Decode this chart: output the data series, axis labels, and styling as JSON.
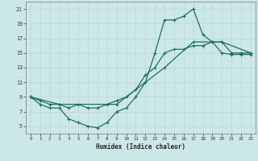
{
  "xlabel": "Humidex (Indice chaleur)",
  "bg_color": "#cce8e6",
  "line_color": "#1a6e6a",
  "grid_color": "#b8d8d5",
  "xlim": [
    -0.5,
    23.5
  ],
  "ylim": [
    4,
    22
  ],
  "xticks": [
    0,
    1,
    2,
    3,
    4,
    5,
    6,
    7,
    8,
    9,
    10,
    11,
    12,
    13,
    14,
    15,
    16,
    17,
    18,
    19,
    20,
    21,
    22,
    23
  ],
  "yticks": [
    5,
    7,
    9,
    11,
    13,
    15,
    17,
    19,
    21
  ],
  "line1_x": [
    0,
    1,
    2,
    3,
    4,
    5,
    6,
    7,
    8,
    9,
    10,
    11,
    12,
    13,
    14,
    15,
    16,
    17,
    18,
    19,
    20,
    21,
    22,
    23
  ],
  "line1_y": [
    9,
    8,
    7.5,
    7.5,
    6,
    5.5,
    5,
    4.8,
    5.5,
    7,
    7.5,
    9,
    11,
    15,
    19.5,
    19.5,
    20,
    21,
    17.5,
    16.5,
    15,
    14.8,
    14.8,
    14.8
  ],
  "line2_x": [
    0,
    1,
    2,
    3,
    4,
    5,
    6,
    7,
    8,
    9,
    10,
    11,
    12,
    13,
    14,
    15,
    16,
    17,
    18,
    19,
    20,
    21,
    22,
    23
  ],
  "line2_y": [
    9,
    8.5,
    8,
    8,
    7.5,
    8,
    7.5,
    7.5,
    8,
    8.5,
    9,
    10,
    12,
    13,
    15,
    15.5,
    15.5,
    16,
    16,
    16.5,
    16.5,
    15,
    15,
    15
  ],
  "line3_x": [
    0,
    3,
    9,
    14,
    17,
    20,
    23
  ],
  "line3_y": [
    9,
    8,
    8,
    13,
    16.5,
    16.5,
    15
  ]
}
